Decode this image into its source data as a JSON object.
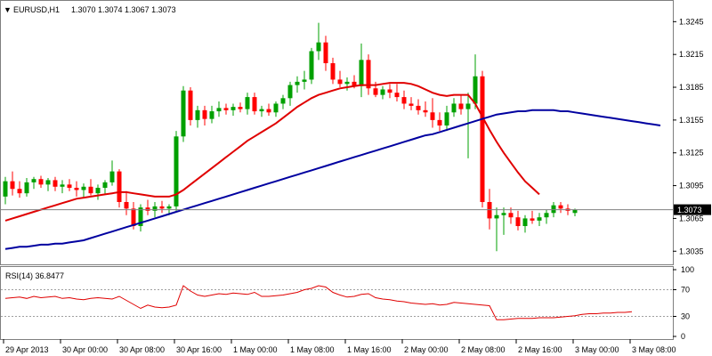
{
  "header": {
    "symbol_label": "EURUSD,H1",
    "ohlc": "1.3070 1.3074 1.3067 1.3073"
  },
  "rsi_header": {
    "label": "RSI(14) 36.8477"
  },
  "price_axis": {
    "ticks": [
      "1.3245",
      "1.3215",
      "1.3185",
      "1.3155",
      "1.3125",
      "1.3095",
      "1.3065",
      "1.3035"
    ],
    "current_price": "1.3073"
  },
  "rsi_axis": {
    "ticks": [
      "100",
      "70",
      "30",
      "0"
    ]
  },
  "time_axis": {
    "ticks": [
      "29 Apr 2013",
      "30 Apr 00:00",
      "30 Apr 08:00",
      "30 Apr 16:00",
      "1 May 00:00",
      "1 May 08:00",
      "1 May 16:00",
      "2 May 00:00",
      "2 May 08:00",
      "2 May 16:00",
      "3 May 00:00",
      "3 May 08:00"
    ]
  },
  "colors": {
    "bull": "#00a000",
    "bear": "#ff0000",
    "fast_ma": "#e00000",
    "slow_ma": "#0000a0",
    "rsi_line": "#e00000",
    "current_line": "#808080"
  },
  "chart_data": [
    {
      "type": "candlestick",
      "title": "EURUSD,H1",
      "ylim": [
        1.3023,
        1.3264
      ],
      "x_label_step": 8,
      "bars": [
        [
          1.3085,
          1.3103,
          1.3078,
          1.3099
        ],
        [
          1.3099,
          1.3108,
          1.3086,
          1.3092
        ],
        [
          1.3092,
          1.3099,
          1.3084,
          1.3088
        ],
        [
          1.3088,
          1.3102,
          1.3085,
          1.3098
        ],
        [
          1.3098,
          1.3103,
          1.3092,
          1.3101
        ],
        [
          1.3101,
          1.3104,
          1.3093,
          1.3096
        ],
        [
          1.3096,
          1.3102,
          1.309,
          1.31
        ],
        [
          1.31,
          1.3103,
          1.309,
          1.3094
        ],
        [
          1.3094,
          1.31,
          1.3088,
          1.3096
        ],
        [
          1.3096,
          1.3101,
          1.309,
          1.3093
        ],
        [
          1.3093,
          1.3099,
          1.3085,
          1.3091
        ],
        [
          1.3091,
          1.3097,
          1.3084,
          1.3094
        ],
        [
          1.3094,
          1.3101,
          1.3086,
          1.3088
        ],
        [
          1.3088,
          1.3096,
          1.3082,
          1.3093
        ],
        [
          1.3093,
          1.31,
          1.3087,
          1.3098
        ],
        [
          1.3098,
          1.3118,
          1.3095,
          1.3108
        ],
        [
          1.3108,
          1.311,
          1.3075,
          1.308
        ],
        [
          1.308,
          1.309,
          1.3068,
          1.3074
        ],
        [
          1.3074,
          1.308,
          1.3055,
          1.3058
        ],
        [
          1.3058,
          1.3078,
          1.3053,
          1.3075
        ],
        [
          1.3075,
          1.3082,
          1.3068,
          1.3072
        ],
        [
          1.3072,
          1.308,
          1.3066,
          1.3076
        ],
        [
          1.3076,
          1.3081,
          1.307,
          1.3074
        ],
        [
          1.3074,
          1.3078,
          1.3068,
          1.3076
        ],
        [
          1.3076,
          1.3145,
          1.3072,
          1.314
        ],
        [
          1.314,
          1.3186,
          1.3135,
          1.3182
        ],
        [
          1.3182,
          1.3185,
          1.315,
          1.3155
        ],
        [
          1.3155,
          1.3168,
          1.3148,
          1.3164
        ],
        [
          1.3164,
          1.3168,
          1.315,
          1.3156
        ],
        [
          1.3156,
          1.3168,
          1.3152,
          1.3163
        ],
        [
          1.3163,
          1.3172,
          1.3158,
          1.3166
        ],
        [
          1.3166,
          1.317,
          1.316,
          1.3164
        ],
        [
          1.3164,
          1.317,
          1.3159,
          1.3167
        ],
        [
          1.3167,
          1.3171,
          1.3162,
          1.3165
        ],
        [
          1.3165,
          1.318,
          1.316,
          1.3176
        ],
        [
          1.3176,
          1.318,
          1.316,
          1.3163
        ],
        [
          1.3163,
          1.3168,
          1.3158,
          1.3165
        ],
        [
          1.3165,
          1.317,
          1.3159,
          1.3162
        ],
        [
          1.3162,
          1.3172,
          1.3158,
          1.317
        ],
        [
          1.317,
          1.3178,
          1.3165,
          1.3175
        ],
        [
          1.3175,
          1.319,
          1.3168,
          1.3187
        ],
        [
          1.3187,
          1.3195,
          1.318,
          1.319
        ],
        [
          1.319,
          1.32,
          1.3183,
          1.3192
        ],
        [
          1.3192,
          1.3221,
          1.3188,
          1.3218
        ],
        [
          1.3218,
          1.3244,
          1.321,
          1.3226
        ],
        [
          1.3226,
          1.3232,
          1.32,
          1.3207
        ],
        [
          1.3207,
          1.3212,
          1.3188,
          1.3192
        ],
        [
          1.3192,
          1.32,
          1.3185,
          1.3188
        ],
        [
          1.3188,
          1.3194,
          1.3182,
          1.319
        ],
        [
          1.319,
          1.3196,
          1.3184,
          1.3186
        ],
        [
          1.3186,
          1.3225,
          1.3176,
          1.321
        ],
        [
          1.321,
          1.3215,
          1.3178,
          1.3184
        ],
        [
          1.3184,
          1.319,
          1.3176,
          1.3178
        ],
        [
          1.3178,
          1.3186,
          1.3174,
          1.3183
        ],
        [
          1.3183,
          1.3188,
          1.3175,
          1.318
        ],
        [
          1.318,
          1.3188,
          1.3172,
          1.3176
        ],
        [
          1.3176,
          1.3182,
          1.3165,
          1.317
        ],
        [
          1.317,
          1.3176,
          1.3164,
          1.3168
        ],
        [
          1.3168,
          1.3174,
          1.316,
          1.3164
        ],
        [
          1.3164,
          1.3172,
          1.3158,
          1.3162
        ],
        [
          1.3162,
          1.3175,
          1.3148,
          1.3155
        ],
        [
          1.3155,
          1.3162,
          1.3145,
          1.315
        ],
        [
          1.315,
          1.3168,
          1.3145,
          1.3162
        ],
        [
          1.3162,
          1.3175,
          1.3158,
          1.317
        ],
        [
          1.317,
          1.3178,
          1.316,
          1.3165
        ],
        [
          1.3165,
          1.318,
          1.312,
          1.317
        ],
        [
          1.317,
          1.3215,
          1.3165,
          1.3195
        ],
        [
          1.3195,
          1.32,
          1.3075,
          1.308
        ],
        [
          1.308,
          1.3092,
          1.3055,
          1.3065
        ],
        [
          1.3065,
          1.3075,
          1.3035,
          1.3068
        ],
        [
          1.3068,
          1.3075,
          1.305,
          1.307
        ],
        [
          1.307,
          1.3075,
          1.306,
          1.3066
        ],
        [
          1.3066,
          1.3072,
          1.3054,
          1.3058
        ],
        [
          1.3058,
          1.3068,
          1.3052,
          1.3065
        ],
        [
          1.3065,
          1.3072,
          1.306,
          1.3063
        ],
        [
          1.3063,
          1.307,
          1.3058,
          1.3066
        ],
        [
          1.3066,
          1.3073,
          1.306,
          1.307
        ],
        [
          1.307,
          1.308,
          1.3066,
          1.3077
        ],
        [
          1.3077,
          1.308,
          1.307,
          1.3074
        ],
        [
          1.3074,
          1.3078,
          1.3068,
          1.3072
        ],
        [
          1.307,
          1.3074,
          1.3067,
          1.3073
        ]
      ],
      "series": [
        {
          "values": [
            1.3063,
            1.3065,
            1.3067,
            1.3069,
            1.3071,
            1.3073,
            1.3075,
            1.3077,
            1.3079,
            1.3081,
            1.3083,
            1.3084,
            1.3085,
            1.3086,
            1.3087,
            1.3088,
            1.3089,
            1.3089,
            1.3088,
            1.3087,
            1.3086,
            1.3085,
            1.3085,
            1.3085,
            1.3087,
            1.3091,
            1.3096,
            1.3101,
            1.3106,
            1.3111,
            1.3116,
            1.3121,
            1.3126,
            1.3131,
            1.3136,
            1.314,
            1.3144,
            1.3148,
            1.3152,
            1.3157,
            1.3162,
            1.3167,
            1.3171,
            1.3175,
            1.3178,
            1.318,
            1.3182,
            1.3184,
            1.3185,
            1.3186,
            1.3187,
            1.3187,
            1.3187,
            1.3188,
            1.3189,
            1.3189,
            1.3189,
            1.3188,
            1.3186,
            1.3183,
            1.318,
            1.3178,
            1.3177,
            1.3178,
            1.3178,
            1.3178,
            1.317,
            1.3158,
            1.3146,
            1.3135,
            1.3125,
            1.3116,
            1.3107,
            1.3099,
            1.3093,
            1.3087
          ]
        },
        {
          "values": [
            1.3037,
            1.3038,
            1.3039,
            1.3039,
            1.304,
            1.3041,
            1.3041,
            1.3042,
            1.3042,
            1.3043,
            1.3044,
            1.3045,
            1.3047,
            1.3049,
            1.3051,
            1.3053,
            1.3055,
            1.3057,
            1.3059,
            1.3061,
            1.3063,
            1.3065,
            1.3067,
            1.3069,
            1.3071,
            1.3073,
            1.3075,
            1.3077,
            1.3079,
            1.3081,
            1.3083,
            1.3085,
            1.3087,
            1.3089,
            1.3091,
            1.3093,
            1.3095,
            1.3097,
            1.3099,
            1.3101,
            1.3103,
            1.3105,
            1.3107,
            1.3109,
            1.3111,
            1.3113,
            1.3115,
            1.3117,
            1.3119,
            1.3121,
            1.3123,
            1.3125,
            1.3127,
            1.3129,
            1.3131,
            1.3133,
            1.3135,
            1.3137,
            1.3139,
            1.3141,
            1.3142,
            1.3144,
            1.3146,
            1.3148,
            1.315,
            1.3152,
            1.3154,
            1.3156,
            1.3158,
            1.316,
            1.3161,
            1.3162,
            1.3163,
            1.3163,
            1.3164,
            1.3164,
            1.3164,
            1.3164,
            1.3163,
            1.3163,
            1.3162,
            1.3161,
            1.316,
            1.3159,
            1.3158,
            1.3157,
            1.3156,
            1.3155,
            1.3154,
            1.3153,
            1.3152,
            1.3151,
            1.315
          ]
        }
      ]
    },
    {
      "type": "line",
      "title": "RSI(14) 36.8477",
      "ylim": [
        0,
        100
      ],
      "series": [
        {
          "values": [
            57,
            58,
            59,
            57,
            60,
            58,
            59,
            60,
            57,
            58,
            56,
            55,
            57,
            58,
            57,
            56,
            60,
            54,
            48,
            42,
            47,
            44,
            43,
            44,
            47,
            76,
            68,
            62,
            60,
            62,
            64,
            63,
            65,
            64,
            63,
            66,
            60,
            60,
            61,
            62,
            64,
            66,
            70,
            72,
            76,
            74,
            66,
            62,
            59,
            60,
            63,
            64,
            58,
            56,
            55,
            53,
            52,
            50,
            49,
            48,
            49,
            47,
            48,
            51,
            50,
            49,
            48,
            47,
            46,
            25,
            25,
            26,
            27,
            27,
            27,
            28,
            28,
            28,
            29,
            30,
            31,
            33,
            34,
            34,
            35,
            35,
            36,
            36,
            37
          ]
        }
      ]
    }
  ]
}
